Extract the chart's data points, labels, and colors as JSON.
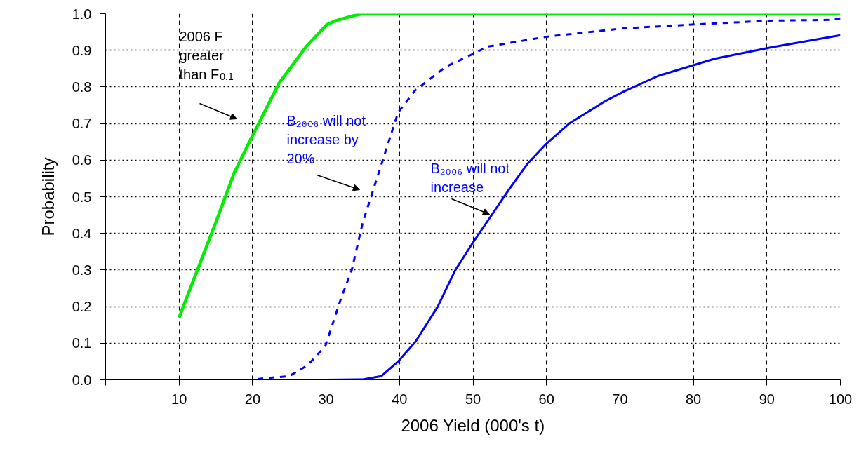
{
  "chart_data": {
    "type": "line",
    "xlabel": "2006 Yield (000's t)",
    "ylabel": "Probability",
    "xlim": [
      0,
      100
    ],
    "ylim": [
      0,
      1
    ],
    "xticks": [
      {
        "value": 0,
        "label": null
      },
      10,
      20,
      30,
      40,
      50,
      60,
      70,
      80,
      90,
      100
    ],
    "yticks": [
      {
        "value": 0,
        "label": "0.0"
      },
      0.1,
      0.2,
      0.3,
      0.4,
      0.5,
      0.6,
      0.7,
      0.8,
      0.9,
      {
        "value": 1,
        "label": "1.0"
      }
    ],
    "grid": true,
    "marker": "none",
    "series": [
      {
        "color": "#00ee00",
        "line_style": "solid",
        "x": [
          10,
          12.5,
          15,
          17.5,
          20,
          23.6,
          27.3,
          30.1,
          31.2,
          33.8,
          35,
          40,
          50,
          60,
          70,
          80,
          90,
          100
        ],
        "values": [
          0.17,
          0.3,
          0.43,
          0.565,
          0.667,
          0.81,
          0.91,
          0.97,
          0.98,
          0.995,
          1.0,
          1.0,
          1.0,
          1.0,
          1.0,
          1.0,
          1.0,
          1.0
        ]
      },
      {
        "color": "#0000ff",
        "line_style": "dashed",
        "x": [
          10,
          20,
          22,
          25,
          27.5,
          29.9,
          32,
          33.5,
          35,
          37.4,
          39.8,
          42.1,
          46.3,
          50,
          52,
          60,
          70.5,
          80.5,
          90.5,
          98.3,
          100
        ],
        "values": [
          0,
          0,
          0.005,
          0.01,
          0.04,
          0.092,
          0.22,
          0.3,
          0.43,
          0.58,
          0.73,
          0.79,
          0.855,
          0.89,
          0.91,
          0.937,
          0.96,
          0.971,
          0.981,
          0.983,
          0.987
        ]
      },
      {
        "color": "#0000ff",
        "line_style": "solid",
        "x": [
          10,
          20,
          30,
          35,
          37.5,
          39.8,
          42.2,
          45.2,
          47.6,
          50,
          54.9,
          57.4,
          60,
          63.1,
          67.9,
          70.5,
          75.2,
          82.9,
          90.6,
          100
        ],
        "values": [
          0,
          0,
          0,
          0.001,
          0.01,
          0.05,
          0.105,
          0.2,
          0.3,
          0.375,
          0.52,
          0.59,
          0.645,
          0.7,
          0.76,
          0.787,
          0.83,
          0.877,
          0.908,
          0.941
        ]
      }
    ],
    "annotations": [
      "2006 F greater than F$_{0.1}$",
      "B₂₀₀₆ will not increase by 20%",
      "B₂₀₀₆ will not increase"
    ]
  }
}
